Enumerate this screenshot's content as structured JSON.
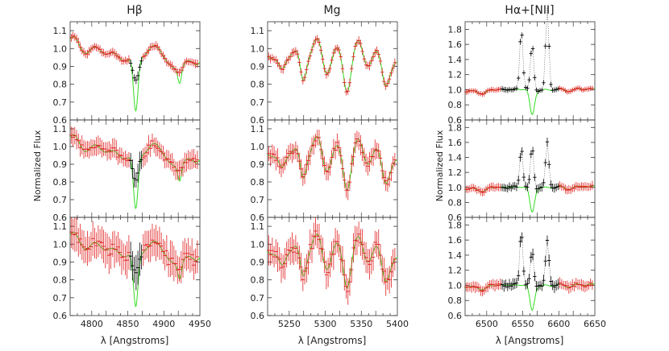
{
  "chart_data": {
    "type": "line",
    "layout": "3 columns x 3 rows of spectra panels",
    "colors": {
      "model": "#33dd22",
      "masked_points": "#e02020",
      "fit_points": "#000000",
      "connector": "#555555"
    },
    "columns": [
      {
        "title": "Hβ",
        "xlabel": "λ [Angstroms]",
        "ylabel": "",
        "xlim": [
          4770,
          4950
        ],
        "ylim": [
          0.6,
          1.15
        ],
        "xticks": [
          4800,
          4850,
          4900,
          4950
        ],
        "yticks": [
          0.6,
          0.7,
          0.8,
          0.9,
          1.0,
          1.1
        ],
        "lines": [
          {
            "center": 4861,
            "model_depth": 0.31,
            "data_depth": 0.14
          }
        ],
        "minor_lines": [
          {
            "center": 4922,
            "model_depth": 0.09,
            "data_depth": 0.03
          }
        ],
        "rows": [
          {
            "name": "top",
            "noise": 0.006,
            "errbar": 0.01
          },
          {
            "name": "middle",
            "noise": 0.02,
            "errbar": 0.03
          },
          {
            "name": "bottom",
            "noise": 0.035,
            "errbar": 0.06
          }
        ]
      },
      {
        "title": "Mg",
        "xlabel": "λ [Angstroms]",
        "ylabel": "",
        "xlim": [
          5220,
          5400
        ],
        "ylim": [
          0.6,
          1.15
        ],
        "xticks": [
          5250,
          5300,
          5350,
          5400
        ],
        "yticks": [
          0.6,
          0.7,
          0.8,
          0.9,
          1.0,
          1.1
        ],
        "lines": [],
        "minor_lines": [],
        "rows": [
          {
            "name": "top",
            "noise": 0.006,
            "errbar": 0.01
          },
          {
            "name": "middle",
            "noise": 0.02,
            "errbar": 0.03
          },
          {
            "name": "bottom",
            "noise": 0.035,
            "errbar": 0.05
          }
        ]
      },
      {
        "title": "Hα+[NII]",
        "xlabel": "λ [Angstroms]",
        "ylabel": "",
        "xlim": [
          6470,
          6650
        ],
        "ylim": [
          0.6,
          1.9
        ],
        "xticks": [
          6500,
          6550,
          6600,
          6650
        ],
        "yticks": [
          0.6,
          0.8,
          1.0,
          1.2,
          1.4,
          1.6,
          1.8
        ],
        "lines": [
          {
            "center": 6563,
            "model_depth": 0.33
          }
        ],
        "emission": [
          {
            "center": 6548,
            "heights": [
              0.8,
              0.52,
              0.72
            ]
          },
          {
            "center": 6563,
            "heights": [
              0.6,
              0.55,
              0.45
            ]
          },
          {
            "center": 6584,
            "heights": [
              1.1,
              0.6,
              0.6
            ]
          }
        ],
        "rows": [
          {
            "name": "top",
            "noise": 0.006,
            "errbar": 0.01
          },
          {
            "name": "middle",
            "noise": 0.015,
            "errbar": 0.025
          },
          {
            "name": "bottom",
            "noise": 0.02,
            "errbar": 0.035
          }
        ]
      }
    ],
    "shared_ylabel": "Normalized Flux"
  }
}
